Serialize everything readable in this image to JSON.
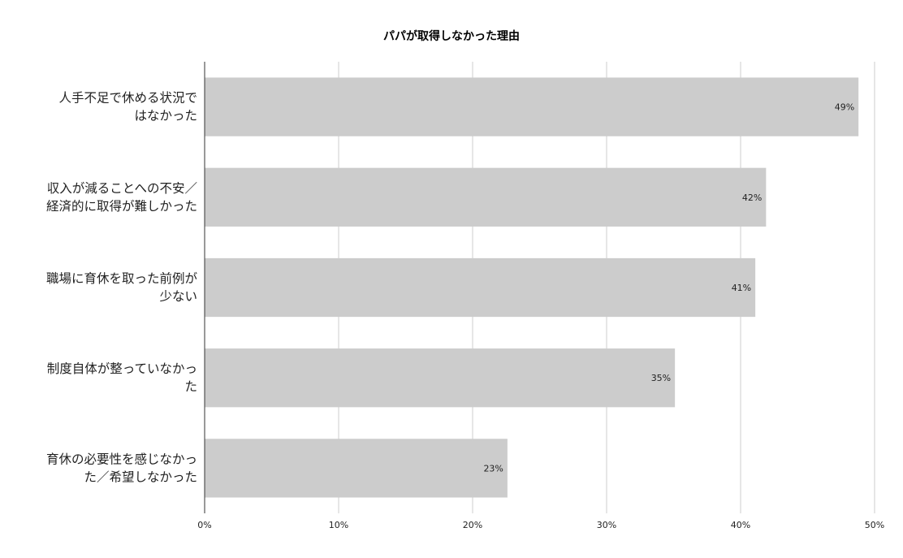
{
  "chart_data": {
    "type": "bar",
    "orientation": "horizontal",
    "title": "パパが取得しなかった理由",
    "categories": [
      [
        "人手不足で休める状況で",
        "はなかった"
      ],
      [
        "収入が減ることへの不安／",
        "経済的に取得が難しかった"
      ],
      [
        "職場に育休を取った前例が",
        "少ない"
      ],
      [
        "制度自体が整っていなかっ",
        "た"
      ],
      [
        "育休の必要性を感じなかっ",
        "た／希望しなかった"
      ]
    ],
    "values": [
      48.8,
      41.9,
      41.1,
      35.1,
      22.6
    ],
    "data_labels": [
      "49%",
      "42%",
      "41%",
      "35%",
      "23%"
    ],
    "xlim": [
      0,
      50
    ],
    "x_ticks": [
      0,
      10,
      20,
      30,
      40,
      50
    ],
    "x_tick_labels": [
      "0%",
      "10%",
      "20%",
      "30%",
      "40%",
      "50%"
    ],
    "grid": true,
    "legend": "none",
    "bar_color": "#cccccc",
    "grid_color": "#cccccc",
    "axis_color": "#333333"
  }
}
